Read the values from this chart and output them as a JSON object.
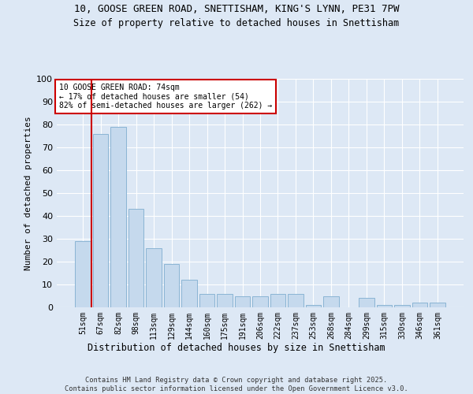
{
  "title1": "10, GOOSE GREEN ROAD, SNETTISHAM, KING'S LYNN, PE31 7PW",
  "title2": "Size of property relative to detached houses in Snettisham",
  "xlabel": "Distribution of detached houses by size in Snettisham",
  "ylabel": "Number of detached properties",
  "categories": [
    "51sqm",
    "67sqm",
    "82sqm",
    "98sqm",
    "113sqm",
    "129sqm",
    "144sqm",
    "160sqm",
    "175sqm",
    "191sqm",
    "206sqm",
    "222sqm",
    "237sqm",
    "253sqm",
    "268sqm",
    "284sqm",
    "299sqm",
    "315sqm",
    "330sqm",
    "346sqm",
    "361sqm"
  ],
  "values": [
    29,
    76,
    79,
    43,
    26,
    19,
    12,
    6,
    6,
    5,
    5,
    6,
    6,
    1,
    5,
    0,
    4,
    1,
    1,
    2,
    2
  ],
  "bar_color": "#c5d9ed",
  "bar_edge_color": "#8ab4d4",
  "vline_color": "#cc0000",
  "annotation_text": "10 GOOSE GREEN ROAD: 74sqm\n← 17% of detached houses are smaller (54)\n82% of semi-detached houses are larger (262) →",
  "annotation_box_color": "#ffffff",
  "annotation_box_edge_color": "#cc0000",
  "background_color": "#dde8f5",
  "plot_bg_color": "#dde8f5",
  "footer_text": "Contains HM Land Registry data © Crown copyright and database right 2025.\nContains public sector information licensed under the Open Government Licence v3.0.",
  "ylim": [
    0,
    100
  ],
  "yticks": [
    0,
    10,
    20,
    30,
    40,
    50,
    60,
    70,
    80,
    90,
    100
  ]
}
